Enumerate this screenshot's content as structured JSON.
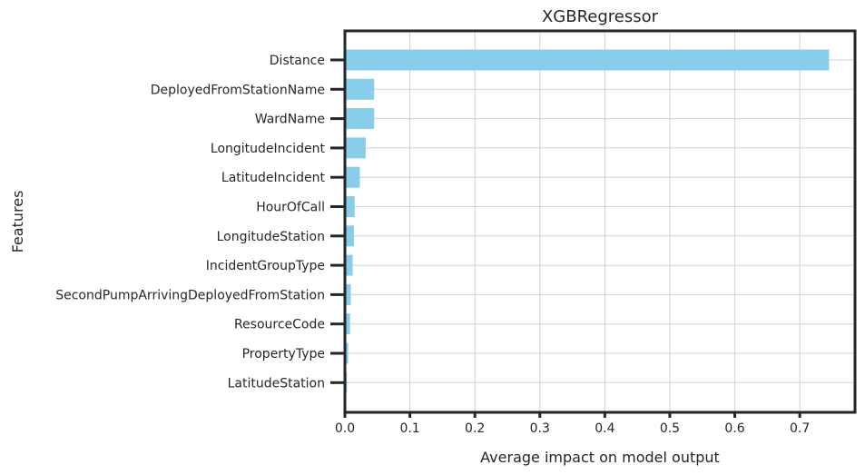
{
  "chart_data": {
    "type": "bar",
    "orientation": "horizontal",
    "title": "XGBRegressor",
    "xlabel": "Average impact on model output",
    "ylabel": "Features",
    "categories": [
      "Distance",
      "DeployedFromStationName",
      "WardName",
      "LongitudeIncident",
      "LatitudeIncident",
      "HourOfCall",
      "LongitudeStation",
      "IncidentGroupType",
      "SecondPumpArrivingDeployedFromStation",
      "ResourceCode",
      "PropertyType",
      "LatitudeStation"
    ],
    "values": [
      0.745,
      0.045,
      0.045,
      0.032,
      0.023,
      0.015,
      0.014,
      0.012,
      0.009,
      0.008,
      0.005,
      0.003
    ],
    "xlim": [
      0.0,
      0.785
    ],
    "xticks": [
      0.0,
      0.1,
      0.2,
      0.3,
      0.4,
      0.5,
      0.6,
      0.7
    ],
    "xtick_labels": [
      "0.0",
      "0.1",
      "0.2",
      "0.3",
      "0.4",
      "0.5",
      "0.6",
      "0.7"
    ],
    "grid": true,
    "bar_color": "#87ceeb"
  }
}
